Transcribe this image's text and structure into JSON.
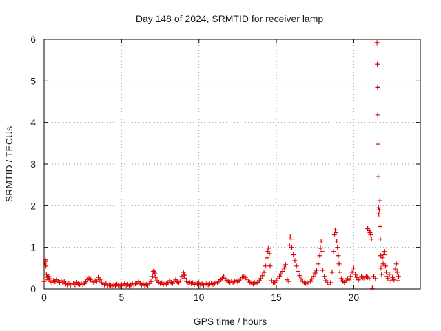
{
  "chart_data": {
    "type": "scatter",
    "title": "Day 148 of 2024, SRMTID for receiver lamp",
    "xlabel": "GPS time / hours",
    "ylabel": "SRMTID / TECUs",
    "xlim": [
      0,
      24.3
    ],
    "ylim": [
      0,
      6
    ],
    "x_ticks": [
      0,
      5,
      10,
      15,
      20
    ],
    "y_ticks": [
      0,
      1,
      2,
      3,
      4,
      5,
      6
    ],
    "grid": true,
    "marker": "+",
    "series": [
      {
        "name": "SRMTID",
        "color": "#dd0000",
        "points": [
          [
            0.0,
            0.18
          ],
          [
            0.05,
            0.62
          ],
          [
            0.08,
            0.7
          ],
          [
            0.1,
            0.66
          ],
          [
            0.12,
            0.55
          ],
          [
            0.15,
            0.35
          ],
          [
            0.2,
            0.28
          ],
          [
            0.25,
            0.22
          ],
          [
            0.3,
            0.3
          ],
          [
            0.35,
            0.25
          ],
          [
            0.4,
            0.18
          ],
          [
            0.5,
            0.15
          ],
          [
            0.6,
            0.2
          ],
          [
            0.7,
            0.17
          ],
          [
            0.8,
            0.22
          ],
          [
            0.9,
            0.19
          ],
          [
            1.0,
            0.16
          ],
          [
            1.1,
            0.2
          ],
          [
            1.2,
            0.15
          ],
          [
            1.3,
            0.18
          ],
          [
            1.4,
            0.12
          ],
          [
            1.5,
            0.1
          ],
          [
            1.6,
            0.13
          ],
          [
            1.7,
            0.09
          ],
          [
            1.8,
            0.12
          ],
          [
            1.9,
            0.14
          ],
          [
            2.0,
            0.1
          ],
          [
            2.1,
            0.16
          ],
          [
            2.2,
            0.12
          ],
          [
            2.3,
            0.11
          ],
          [
            2.4,
            0.14
          ],
          [
            2.5,
            0.1
          ],
          [
            2.6,
            0.13
          ],
          [
            2.7,
            0.17
          ],
          [
            2.8,
            0.23
          ],
          [
            2.9,
            0.26
          ],
          [
            3.0,
            0.22
          ],
          [
            3.1,
            0.18
          ],
          [
            3.2,
            0.15
          ],
          [
            3.3,
            0.2
          ],
          [
            3.4,
            0.18
          ],
          [
            3.5,
            0.28
          ],
          [
            3.6,
            0.22
          ],
          [
            3.7,
            0.15
          ],
          [
            3.8,
            0.12
          ],
          [
            3.9,
            0.1
          ],
          [
            4.0,
            0.13
          ],
          [
            4.1,
            0.08
          ],
          [
            4.2,
            0.1
          ],
          [
            4.3,
            0.09
          ],
          [
            4.4,
            0.07
          ],
          [
            4.5,
            0.1
          ],
          [
            4.6,
            0.08
          ],
          [
            4.7,
            0.11
          ],
          [
            4.8,
            0.09
          ],
          [
            4.9,
            0.07
          ],
          [
            5.0,
            0.1
          ],
          [
            5.1,
            0.08
          ],
          [
            5.2,
            0.12
          ],
          [
            5.3,
            0.09
          ],
          [
            5.4,
            0.11
          ],
          [
            5.5,
            0.07
          ],
          [
            5.6,
            0.1
          ],
          [
            5.7,
            0.13
          ],
          [
            5.8,
            0.09
          ],
          [
            5.9,
            0.12
          ],
          [
            6.0,
            0.14
          ],
          [
            6.1,
            0.17
          ],
          [
            6.2,
            0.13
          ],
          [
            6.3,
            0.1
          ],
          [
            6.4,
            0.12
          ],
          [
            6.5,
            0.08
          ],
          [
            6.6,
            0.11
          ],
          [
            6.7,
            0.09
          ],
          [
            6.8,
            0.13
          ],
          [
            6.9,
            0.18
          ],
          [
            7.0,
            0.3
          ],
          [
            7.05,
            0.42
          ],
          [
            7.1,
            0.45
          ],
          [
            7.15,
            0.38
          ],
          [
            7.2,
            0.28
          ],
          [
            7.3,
            0.2
          ],
          [
            7.4,
            0.16
          ],
          [
            7.5,
            0.13
          ],
          [
            7.6,
            0.15
          ],
          [
            7.7,
            0.11
          ],
          [
            7.8,
            0.14
          ],
          [
            7.9,
            0.12
          ],
          [
            8.0,
            0.15
          ],
          [
            8.1,
            0.2
          ],
          [
            8.2,
            0.16
          ],
          [
            8.3,
            0.13
          ],
          [
            8.4,
            0.18
          ],
          [
            8.5,
            0.22
          ],
          [
            8.6,
            0.17
          ],
          [
            8.7,
            0.15
          ],
          [
            8.8,
            0.19
          ],
          [
            8.9,
            0.3
          ],
          [
            9.0,
            0.4
          ],
          [
            9.05,
            0.33
          ],
          [
            9.1,
            0.26
          ],
          [
            9.2,
            0.18
          ],
          [
            9.3,
            0.14
          ],
          [
            9.4,
            0.16
          ],
          [
            9.5,
            0.13
          ],
          [
            9.6,
            0.15
          ],
          [
            9.7,
            0.11
          ],
          [
            9.8,
            0.14
          ],
          [
            9.9,
            0.12
          ],
          [
            10.0,
            0.15
          ],
          [
            10.1,
            0.1
          ],
          [
            10.2,
            0.12
          ],
          [
            10.3,
            0.09
          ],
          [
            10.4,
            0.11
          ],
          [
            10.5,
            0.13
          ],
          [
            10.6,
            0.1
          ],
          [
            10.7,
            0.12
          ],
          [
            10.8,
            0.14
          ],
          [
            10.9,
            0.11
          ],
          [
            11.0,
            0.13
          ],
          [
            11.1,
            0.16
          ],
          [
            11.2,
            0.14
          ],
          [
            11.3,
            0.18
          ],
          [
            11.4,
            0.22
          ],
          [
            11.5,
            0.26
          ],
          [
            11.6,
            0.29
          ],
          [
            11.7,
            0.25
          ],
          [
            11.8,
            0.21
          ],
          [
            11.9,
            0.18
          ],
          [
            12.0,
            0.16
          ],
          [
            12.1,
            0.19
          ],
          [
            12.2,
            0.15
          ],
          [
            12.3,
            0.18
          ],
          [
            12.4,
            0.21
          ],
          [
            12.5,
            0.17
          ],
          [
            12.6,
            0.2
          ],
          [
            12.7,
            0.24
          ],
          [
            12.8,
            0.28
          ],
          [
            12.9,
            0.3
          ],
          [
            13.0,
            0.27
          ],
          [
            13.1,
            0.23
          ],
          [
            13.2,
            0.19
          ],
          [
            13.3,
            0.16
          ],
          [
            13.4,
            0.14
          ],
          [
            13.5,
            0.12
          ],
          [
            13.6,
            0.15
          ],
          [
            13.7,
            0.13
          ],
          [
            13.8,
            0.16
          ],
          [
            13.9,
            0.2
          ],
          [
            14.0,
            0.25
          ],
          [
            14.1,
            0.32
          ],
          [
            14.2,
            0.4
          ],
          [
            14.3,
            0.55
          ],
          [
            14.4,
            0.75
          ],
          [
            14.45,
            0.9
          ],
          [
            14.5,
            0.98
          ],
          [
            14.55,
            0.85
          ],
          [
            14.6,
            0.55
          ],
          [
            14.7,
            0.2
          ],
          [
            14.8,
            0.14
          ],
          [
            14.9,
            0.16
          ],
          [
            15.0,
            0.2
          ],
          [
            15.1,
            0.25
          ],
          [
            15.2,
            0.3
          ],
          [
            15.3,
            0.36
          ],
          [
            15.4,
            0.42
          ],
          [
            15.5,
            0.5
          ],
          [
            15.6,
            0.58
          ],
          [
            15.7,
            0.22
          ],
          [
            15.8,
            0.18
          ],
          [
            15.85,
            1.05
          ],
          [
            15.9,
            1.25
          ],
          [
            15.95,
            1.2
          ],
          [
            16.0,
            1.0
          ],
          [
            16.1,
            0.82
          ],
          [
            16.2,
            0.68
          ],
          [
            16.3,
            0.55
          ],
          [
            16.4,
            0.42
          ],
          [
            16.5,
            0.32
          ],
          [
            16.6,
            0.24
          ],
          [
            16.7,
            0.18
          ],
          [
            16.8,
            0.15
          ],
          [
            16.9,
            0.13
          ],
          [
            17.0,
            0.15
          ],
          [
            17.1,
            0.14
          ],
          [
            17.2,
            0.18
          ],
          [
            17.3,
            0.24
          ],
          [
            17.4,
            0.3
          ],
          [
            17.5,
            0.38
          ],
          [
            17.6,
            0.45
          ],
          [
            17.7,
            0.6
          ],
          [
            17.8,
            0.8
          ],
          [
            17.85,
            0.98
          ],
          [
            17.9,
            1.15
          ],
          [
            17.95,
            0.9
          ],
          [
            18.0,
            0.45
          ],
          [
            18.1,
            0.3
          ],
          [
            18.2,
            0.2
          ],
          [
            18.3,
            0.15
          ],
          [
            18.4,
            0.1
          ],
          [
            18.5,
            0.15
          ],
          [
            18.6,
            0.4
          ],
          [
            18.7,
            0.9
          ],
          [
            18.75,
            1.3
          ],
          [
            18.8,
            1.42
          ],
          [
            18.85,
            1.35
          ],
          [
            18.9,
            1.15
          ],
          [
            18.95,
            1.0
          ],
          [
            19.0,
            0.8
          ],
          [
            19.05,
            0.6
          ],
          [
            19.1,
            0.4
          ],
          [
            19.2,
            0.25
          ],
          [
            19.3,
            0.18
          ],
          [
            19.4,
            0.16
          ],
          [
            19.5,
            0.2
          ],
          [
            19.6,
            0.25
          ],
          [
            19.7,
            0.22
          ],
          [
            19.8,
            0.3
          ],
          [
            19.9,
            0.4
          ],
          [
            20.0,
            0.5
          ],
          [
            20.1,
            0.35
          ],
          [
            20.2,
            0.28
          ],
          [
            20.3,
            0.22
          ],
          [
            20.4,
            0.24
          ],
          [
            20.5,
            0.3
          ],
          [
            20.6,
            0.27
          ],
          [
            20.7,
            0.24
          ],
          [
            20.8,
            0.3
          ],
          [
            20.9,
            0.28
          ],
          [
            21.0,
            0.25
          ],
          [
            20.9,
            1.45
          ],
          [
            21.0,
            1.4
          ],
          [
            21.05,
            1.35
          ],
          [
            21.1,
            1.3
          ],
          [
            21.15,
            1.2
          ],
          [
            21.2,
            0.02
          ],
          [
            21.3,
            0.3
          ],
          [
            21.4,
            0.25
          ],
          [
            21.5,
            5.92
          ],
          [
            21.52,
            5.4
          ],
          [
            21.54,
            4.85
          ],
          [
            21.55,
            4.18
          ],
          [
            21.56,
            3.48
          ],
          [
            21.57,
            2.7
          ],
          [
            21.6,
            1.95
          ],
          [
            21.62,
            1.8
          ],
          [
            21.65,
            1.9
          ],
          [
            21.68,
            2.12
          ],
          [
            21.7,
            1.5
          ],
          [
            21.72,
            1.2
          ],
          [
            21.74,
            0.8
          ],
          [
            21.76,
            0.5
          ],
          [
            21.8,
            0.35
          ],
          [
            21.85,
            0.75
          ],
          [
            21.9,
            0.6
          ],
          [
            21.95,
            0.82
          ],
          [
            22.0,
            0.9
          ],
          [
            22.05,
            0.55
          ],
          [
            22.1,
            0.4
          ],
          [
            22.15,
            0.3
          ],
          [
            22.2,
            0.25
          ],
          [
            22.3,
            0.35
          ],
          [
            22.4,
            0.2
          ],
          [
            22.5,
            0.28
          ],
          [
            22.6,
            0.22
          ],
          [
            22.7,
            0.48
          ],
          [
            22.75,
            0.6
          ],
          [
            22.8,
            0.4
          ],
          [
            22.85,
            0.2
          ],
          [
            22.9,
            0.3
          ]
        ]
      }
    ]
  }
}
